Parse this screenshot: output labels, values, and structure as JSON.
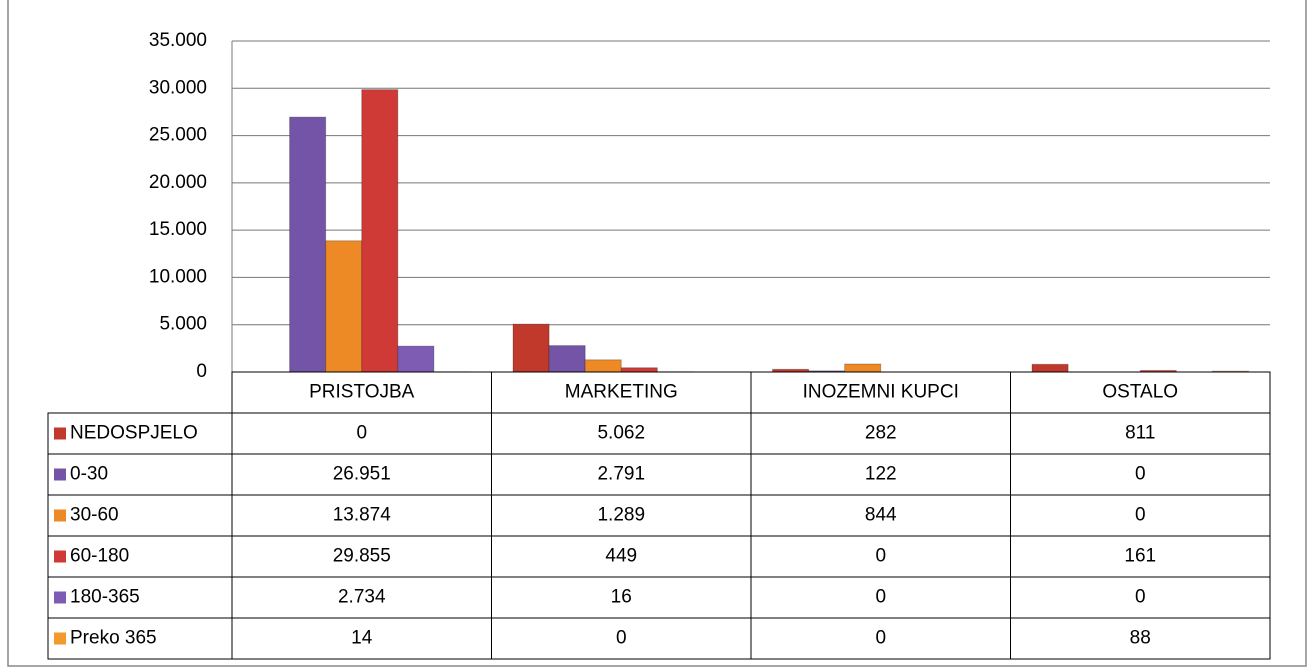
{
  "chart_data": {
    "type": "bar",
    "categories": [
      "PRISTOJBA",
      "MARKETING",
      "INOZEMNI KUPCI",
      "OSTALO"
    ],
    "series": [
      {
        "name": "NEDOSPJELO",
        "color": "#c0392b",
        "values": [
          0,
          5062,
          282,
          811
        ],
        "value_labels": [
          "0",
          "5.062",
          "282",
          "811"
        ]
      },
      {
        "name": "0-30",
        "color": "#7454a6",
        "values": [
          26951,
          2791,
          122,
          0
        ],
        "value_labels": [
          "26.951",
          "2.791",
          "122",
          "0"
        ]
      },
      {
        "name": "30-60",
        "color": "#ee8a25",
        "values": [
          13874,
          1289,
          844,
          0
        ],
        "value_labels": [
          "13.874",
          "1.289",
          "844",
          "0"
        ]
      },
      {
        "name": "60-180",
        "color": "#d03a36",
        "values": [
          29855,
          449,
          0,
          161
        ],
        "value_labels": [
          "29.855",
          "449",
          "0",
          "161"
        ]
      },
      {
        "name": "180-365",
        "color": "#7e5cb4",
        "values": [
          2734,
          16,
          0,
          0
        ],
        "value_labels": [
          "2.734",
          "16",
          "0",
          "0"
        ]
      },
      {
        "name": "Preko 365",
        "color": "#f29a2e",
        "values": [
          14,
          0,
          0,
          88
        ],
        "value_labels": [
          "14",
          "0",
          "0",
          "88"
        ]
      }
    ],
    "ylim": [
      0,
      35000
    ],
    "yticks": [
      {
        "value": 0,
        "label": "0"
      },
      {
        "value": 5000,
        "label": "5.000"
      },
      {
        "value": 10000,
        "label": "10.000"
      },
      {
        "value": 15000,
        "label": "15.000"
      },
      {
        "value": 20000,
        "label": "20.000"
      },
      {
        "value": 25000,
        "label": "25.000"
      },
      {
        "value": 30000,
        "label": "30.000"
      },
      {
        "value": 35000,
        "label": "35.000"
      }
    ],
    "grid": true
  }
}
